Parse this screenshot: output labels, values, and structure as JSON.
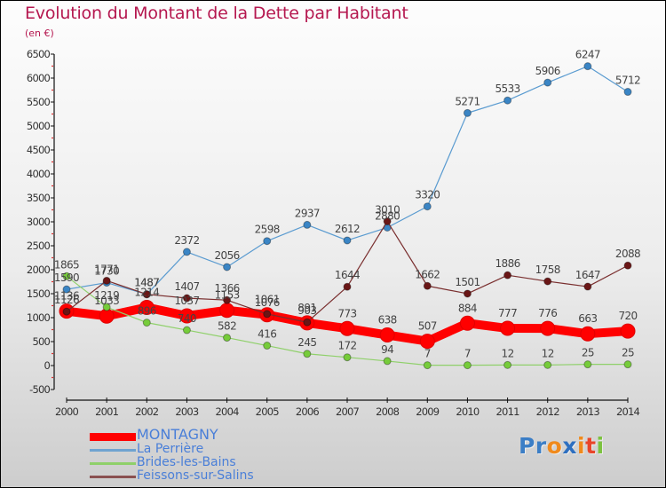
{
  "header": {
    "title": "Evolution du Montant de la Dette par Habitant",
    "subtitle": "(en €)"
  },
  "logo": {
    "letters": [
      {
        "char": "P",
        "color": "#3b7ec6"
      },
      {
        "char": "r",
        "color": "#3b7ec6"
      },
      {
        "char": "o",
        "color": "#f08a1c"
      },
      {
        "char": "x",
        "color": "#2d6fc0"
      },
      {
        "char": "i",
        "color": "#f08a1c"
      },
      {
        "char": "t",
        "color": "#e8452a"
      },
      {
        "char": "i",
        "color": "#7cc23f"
      }
    ]
  },
  "legend": [
    {
      "label": "MONTAGNY",
      "color": "#ff0000",
      "text_color": "#4a7fd8"
    },
    {
      "label": "La Perrière",
      "color": "#6fa3d0",
      "text_color": "#4a7fd8"
    },
    {
      "label": "Brides-les-Bains",
      "color": "#8fd06a",
      "text_color": "#4a7fd8"
    },
    {
      "label": "Feissons-sur-Salins",
      "color": "#8a5050",
      "text_color": "#4a7fd8"
    }
  ],
  "chart_data": {
    "type": "line",
    "title": "Evolution du Montant de la Dette par Habitant",
    "subtitle": "(en €)",
    "xlabel": "",
    "ylabel": "",
    "x": [
      "2000",
      "2001",
      "2002",
      "2003",
      "2004",
      "2005",
      "2006",
      "2007",
      "2008",
      "2009",
      "2010",
      "2011",
      "2012",
      "2013",
      "2014"
    ],
    "ylim": [
      -500,
      6500
    ],
    "yticks": [
      -500,
      0,
      500,
      1000,
      1500,
      2000,
      2500,
      3000,
      3500,
      4000,
      4500,
      5000,
      5500,
      6000,
      6500
    ],
    "grid": false,
    "legend_position": "bottom-left",
    "series": [
      {
        "name": "MONTAGNY",
        "color": "#ff0000",
        "marker_color": "#ff0000",
        "values": [
          1136,
          1033,
          1214,
          1037,
          1153,
          1061,
          891,
          773,
          638,
          507,
          884,
          777,
          776,
          663,
          720
        ]
      },
      {
        "name": "La Perrière",
        "color": "#5a9bd0",
        "marker_color": "#3a85c5",
        "values": [
          1590,
          1730,
          1487,
          2372,
          2056,
          2598,
          2937,
          2612,
          2880,
          3320,
          5271,
          5533,
          5906,
          6247,
          5712
        ]
      },
      {
        "name": "Brides-les-Bains",
        "color": "#8fd06a",
        "marker_color": "#76cc3a",
        "values": [
          1865,
          1219,
          896,
          740,
          582,
          416,
          245,
          172,
          94,
          7,
          7,
          12,
          12,
          25,
          25
        ]
      },
      {
        "name": "Feissons-sur-Salins",
        "color": "#7a2f2f",
        "marker_color": "#6a1616",
        "values": [
          1126,
          1771,
          1487,
          1407,
          1366,
          1076,
          903,
          1644,
          3010,
          1662,
          1501,
          1886,
          1758,
          1647,
          2088
        ]
      }
    ]
  }
}
